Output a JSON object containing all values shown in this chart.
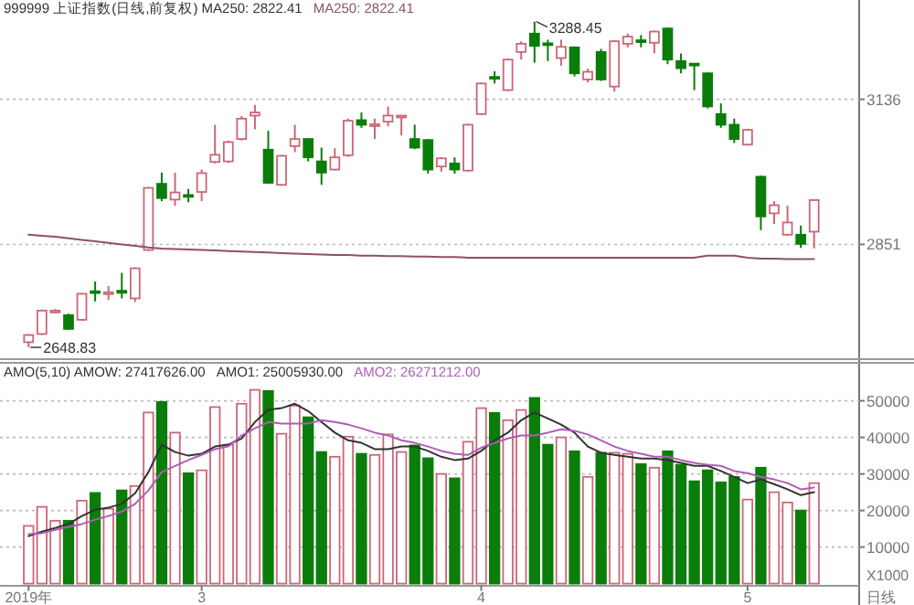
{
  "chart_data": [
    {
      "type": "candlestick",
      "title": "999999 上证指数(日线,前复权)  MA250: 2822.41",
      "legend": "top left",
      "grid": "y",
      "tick_labels": "y",
      "categories": [
        null,
        null,
        null,
        null,
        null,
        null,
        null,
        null,
        null,
        null,
        null,
        null,
        null,
        null,
        null,
        null,
        null,
        null,
        null,
        null,
        null,
        null,
        null,
        null,
        null,
        null,
        null,
        null,
        null,
        null,
        null,
        null,
        null,
        null,
        null,
        null,
        null,
        null,
        null,
        null,
        null,
        null,
        null,
        null,
        null,
        null,
        null,
        null,
        null,
        null,
        null,
        null,
        null,
        null,
        null,
        null,
        null,
        null,
        null,
        null
      ],
      "ylim": [
        2631,
        3331
      ],
      "yticks": [
        3136,
        2851
      ],
      "ohlc": [
        [
          2659,
          2675,
          2648.83,
          2673
        ],
        [
          2675,
          2723,
          2673,
          2721
        ],
        [
          2720,
          2724,
          2716,
          2721
        ],
        [
          2712,
          2715,
          2683,
          2685
        ],
        [
          2703,
          2756,
          2701,
          2754
        ],
        [
          2759,
          2778,
          2739,
          2756
        ],
        [
          2755,
          2769,
          2742,
          2757
        ],
        [
          2760,
          2795,
          2745,
          2756
        ],
        [
          2745,
          2806,
          2738,
          2804
        ],
        [
          2840,
          2964,
          2838,
          2962
        ],
        [
          2970,
          2992,
          2936,
          2942
        ],
        [
          2939,
          2992,
          2927,
          2953
        ],
        [
          2948,
          2960,
          2934,
          2945
        ],
        [
          2954,
          2998,
          2936,
          2991
        ],
        [
          3013,
          3086,
          3010,
          3027
        ],
        [
          3014,
          3055,
          3011,
          3052
        ],
        [
          3058,
          3103,
          3055,
          3098
        ],
        [
          3104,
          3125,
          3077,
          3110
        ],
        [
          3037,
          3074,
          2970,
          2972
        ],
        [
          2968,
          3027,
          2966,
          3025
        ],
        [
          3044,
          3086,
          3032,
          3058
        ],
        [
          3058,
          3060,
          3014,
          3022
        ],
        [
          3014,
          3041,
          2968,
          2992
        ],
        [
          2998,
          3040,
          2996,
          3022
        ],
        [
          3026,
          3098,
          3023,
          3094
        ],
        [
          3095,
          3110,
          3080,
          3086
        ],
        [
          3084,
          3098,
          3058,
          3087
        ],
        [
          3092,
          3122,
          3083,
          3104
        ],
        [
          3102,
          3105,
          3065,
          3104
        ],
        [
          3058,
          3086,
          3038,
          3041
        ],
        [
          3056,
          3058,
          2990,
          2998
        ],
        [
          3004,
          3022,
          2994,
          3020
        ],
        [
          3010,
          3022,
          2990,
          2998
        ],
        [
          2996,
          3088,
          2994,
          3086
        ],
        [
          3107,
          3169,
          3105,
          3167
        ],
        [
          3180,
          3191,
          3167,
          3179
        ],
        [
          3154,
          3216,
          3152,
          3214
        ],
        [
          3229,
          3250,
          3214,
          3245
        ],
        [
          3265,
          3288.45,
          3208,
          3241
        ],
        [
          3246,
          3253,
          3211,
          3244
        ],
        [
          3217,
          3253,
          3202,
          3239
        ],
        [
          3238,
          3240,
          3181,
          3187
        ],
        [
          3175,
          3196,
          3169,
          3190
        ],
        [
          3229,
          3235,
          3172,
          3175
        ],
        [
          3161,
          3252,
          3151,
          3250
        ],
        [
          3245,
          3265,
          3238,
          3259
        ],
        [
          3252,
          3262,
          3238,
          3249
        ],
        [
          3247,
          3271,
          3226,
          3269
        ],
        [
          3275,
          3277,
          3205,
          3214
        ],
        [
          3211,
          3226,
          3187,
          3197
        ],
        [
          3206,
          3207,
          3154,
          3205
        ],
        [
          3187,
          3189,
          3118,
          3122
        ],
        [
          3107,
          3128,
          3080,
          3086
        ],
        [
          3086,
          3098,
          3050,
          3058
        ],
        [
          3047,
          3078,
          3045,
          3076
        ],
        [
          2984,
          2986,
          2879,
          2906
        ],
        [
          2912,
          2936,
          2891,
          2928
        ],
        [
          2870,
          2927,
          2868,
          2894
        ],
        [
          2870,
          2888,
          2844,
          2852
        ],
        [
          2876,
          2940,
          2843,
          2938
        ]
      ],
      "colors": [
        "#cc6677",
        "#cc6677",
        "#cc6677",
        "#0a7d0a",
        "#cc6677",
        "#0a7d0a",
        "#cc6677",
        "#0a7d0a",
        "#cc6677",
        "#cc6677",
        "#0a7d0a",
        "#cc6677",
        "#0a7d0a",
        "#cc6677",
        "#cc6677",
        "#cc6677",
        "#cc6677",
        "#cc6677",
        "#0a7d0a",
        "#cc6677",
        "#cc6677",
        "#0a7d0a",
        "#0a7d0a",
        "#cc6677",
        "#cc6677",
        "#0a7d0a",
        "#cc6677",
        "#cc6677",
        "#cc6677",
        "#0a7d0a",
        "#0a7d0a",
        "#cc6677",
        "#0a7d0a",
        "#cc6677",
        "#cc6677",
        "#0a7d0a",
        "#cc6677",
        "#cc6677",
        "#0a7d0a",
        "#0a7d0a",
        "#cc6677",
        "#0a7d0a",
        "#cc6677",
        "#0a7d0a",
        "#cc6677",
        "#cc6677",
        "#0a7d0a",
        "#cc6677",
        "#0a7d0a",
        "#0a7d0a",
        "#0a7d0a",
        "#0a7d0a",
        "#0a7d0a",
        "#0a7d0a",
        "#cc6677",
        "#0a7d0a",
        "#cc6677",
        "#cc6677",
        "#0a7d0a",
        "#cc6677"
      ],
      "series": [
        {
          "type": "line",
          "name": "MA250: 2822.41",
          "color": "#8e5068",
          "values": [
            2870,
            2868,
            2866,
            2863,
            2860,
            2857,
            2854,
            2851,
            2848,
            2845,
            2843,
            2842,
            2841,
            2840,
            2839,
            2838,
            2837,
            2836,
            2835,
            2834,
            2833,
            2832,
            2831,
            2830,
            2830,
            2829,
            2829,
            2828,
            2828,
            2827,
            2827,
            2826,
            2826,
            2825,
            2825,
            2825,
            2825,
            2825,
            2825,
            2825,
            2825,
            2825,
            2825,
            2825,
            2825,
            2825,
            2825,
            2825,
            2825,
            2825,
            2825,
            2829,
            2829,
            2829,
            2825,
            2823,
            2823,
            2822,
            2822,
            2822
          ]
        }
      ],
      "annotations": [
        "3288.45",
        "2648.83"
      ]
    },
    {
      "type": "bar",
      "title": "AMO(5,10) AMOW: 27417626.00",
      "legend": "top left",
      "grid": "y",
      "categories": [
        "2019年",
        null,
        null,
        null,
        null,
        null,
        null,
        null,
        null,
        null,
        null,
        null,
        null,
        "3",
        null,
        null,
        null,
        null,
        null,
        null,
        null,
        null,
        null,
        null,
        null,
        null,
        null,
        null,
        null,
        null,
        null,
        null,
        null,
        null,
        "4",
        null,
        null,
        null,
        null,
        null,
        null,
        null,
        null,
        null,
        null,
        null,
        null,
        null,
        null,
        null,
        null,
        null,
        null,
        null,
        "5",
        null,
        null,
        null,
        null,
        null
      ],
      "ylim": [
        0,
        60000
      ],
      "yticks": [
        10000,
        20000,
        30000,
        40000,
        50000
      ],
      "values": [
        15800,
        21000,
        17200,
        17200,
        22700,
        24800,
        20500,
        25500,
        26700,
        46800,
        49700,
        41300,
        30200,
        31000,
        48300,
        38000,
        49200,
        53000,
        52700,
        41000,
        48700,
        45500,
        36000,
        34700,
        40200,
        35500,
        35200,
        40800,
        36000,
        37800,
        34300,
        30000,
        28800,
        38800,
        48000,
        46700,
        44700,
        47500,
        50800,
        38000,
        40000,
        36200,
        29200,
        35800,
        35800,
        35500,
        32700,
        31700,
        36200,
        32500,
        28000,
        31000,
        27700,
        29200,
        23000,
        31700,
        25000,
        22200,
        20000,
        27500
      ],
      "colors": [
        "#cc6677",
        "#cc6677",
        "#cc6677",
        "#0a7d0a",
        "#cc6677",
        "#0a7d0a",
        "#cc6677",
        "#0a7d0a",
        "#cc6677",
        "#cc6677",
        "#0a7d0a",
        "#cc6677",
        "#0a7d0a",
        "#cc6677",
        "#cc6677",
        "#cc6677",
        "#cc6677",
        "#cc6677",
        "#0a7d0a",
        "#cc6677",
        "#cc6677",
        "#0a7d0a",
        "#0a7d0a",
        "#cc6677",
        "#cc6677",
        "#0a7d0a",
        "#cc6677",
        "#cc6677",
        "#cc6677",
        "#0a7d0a",
        "#0a7d0a",
        "#cc6677",
        "#0a7d0a",
        "#cc6677",
        "#cc6677",
        "#0a7d0a",
        "#cc6677",
        "#cc6677",
        "#0a7d0a",
        "#0a7d0a",
        "#cc6677",
        "#0a7d0a",
        "#cc6677",
        "#0a7d0a",
        "#cc6677",
        "#cc6677",
        "#0a7d0a",
        "#cc6677",
        "#0a7d0a",
        "#0a7d0a",
        "#0a7d0a",
        "#0a7d0a",
        "#0a7d0a",
        "#0a7d0a",
        "#cc6677",
        "#0a7d0a",
        "#cc6677",
        "#cc6677",
        "#0a7d0a",
        "#cc6677"
      ],
      "series": [
        {
          "type": "line",
          "name": "AMO1: 25005930.00",
          "color": "#333333",
          "values": [
            13000,
            14200,
            15200,
            16300,
            18500,
            20200,
            20800,
            21800,
            24700,
            30500,
            38000,
            36000,
            35000,
            35500,
            37500,
            38000,
            39700,
            44200,
            47500,
            48000,
            49200,
            47200,
            44200,
            41300,
            39200,
            38500,
            36800,
            36800,
            37500,
            37500,
            36300,
            34700,
            33800,
            34200,
            36300,
            39200,
            41300,
            44700,
            46800,
            45200,
            43500,
            41300,
            37500,
            35800,
            35200,
            34700,
            34200,
            34200,
            33800,
            33000,
            32200,
            32200,
            30800,
            29200,
            27500,
            28500,
            27200,
            25800,
            24200,
            25000
          ]
        },
        {
          "type": "line",
          "name": "AMO2: 26271212.00",
          "color": "#b05cb8",
          "values": [
            13500,
            13800,
            14700,
            15500,
            16300,
            17500,
            18500,
            19700,
            21800,
            25500,
            30500,
            32200,
            33800,
            35200,
            36800,
            37500,
            40500,
            42500,
            44200,
            43800,
            43800,
            43800,
            44700,
            44200,
            43500,
            42500,
            41300,
            40500,
            39200,
            38500,
            37500,
            36300,
            35500,
            35200,
            37200,
            38500,
            39700,
            40500,
            40500,
            41300,
            42200,
            41800,
            40800,
            39200,
            37500,
            36300,
            35500,
            34700,
            34700,
            33800,
            33000,
            32500,
            32200,
            30800,
            30200,
            29200,
            28500,
            27500,
            25800,
            26300
          ]
        }
      ],
      "annotations": [
        "X1000",
        "日线"
      ]
    }
  ]
}
